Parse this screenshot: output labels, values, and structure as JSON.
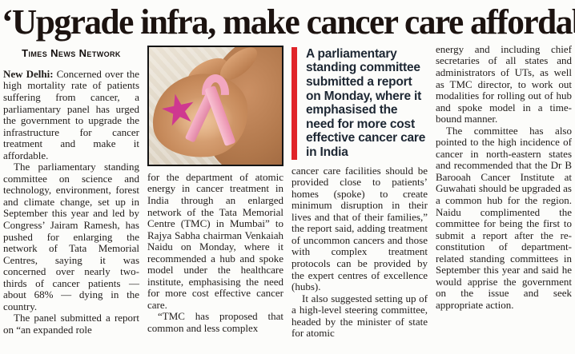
{
  "article": {
    "headline": "‘Upgrade infra, make cancer care affordable’",
    "byline": "Times News Network"
  },
  "colors": {
    "pullquote_bar_red": "#e02429",
    "pullquote_text": "#1d2733",
    "body_text": "#201c1a",
    "ribbon_pink": "#f2a7c0",
    "star_magenta": "#cf3890"
  },
  "photo": {
    "description": "two hands holding a pink awareness ribbon and a magenta star flower"
  },
  "columns": {
    "col1": {
      "p1_lead": "New Delhi:",
      "p1_rest": " Concerned over the high mortality rate of patients suffering from cancer, a parliamentary panel has urged the government to upgrade the infrastructure for cancer treatment and make it affordable.",
      "p2": "The parliamentary standing committee on science and technology, environment, forest and climate change, set up in September this year and led by Congress’ Jairam Ramesh, has pushed for enlarging the network of Tata Memorial Centres, saying it was concerned over nearly two-thirds of cancer patients — about 68% — dying in the country.",
      "p3": "The panel submitted a report on “an expanded role"
    },
    "col2": {
      "p1": "for the department of atomic energy in cancer treatment in India through an enlarged network of the Tata Memorial Centre (TMC) in Mumbai” to Rajya Sabha chairman Venkaiah Naidu on Monday, where it recommended a hub and spoke model under the healthcare institute, emphasising the need for more cost effective cancer care.",
      "p2": "“TMC has proposed that common and less complex"
    },
    "col3": {
      "pullquote": "A parliamentary standing committee submitted a report on Monday, where it emphasised the need for more cost effective cancer care in India",
      "p1": "cancer care facilities should be provided close to patients’ homes (spoke) to create minimum disruption in their lives and that of their families,” the report said, adding treatment of uncommon cancers and those with complex treatment protocols can be provided by the expert centres of excellence (hubs).",
      "p2": "It also suggested setting up of a high-level steering committee, headed by the minister of state for atomic"
    },
    "col4": {
      "p1": "energy and including chief secretaries of all states and administrators of UTs, as well as TMC director, to work out modalities for rolling out of hub and spoke model in a time-bound manner.",
      "p2": "The committee has also pointed to the high incidence of cancer in north-eastern states and recommended that the Dr B Barooah Cancer Institute at Guwahati should be upgraded as a common hub for the region. Naidu complimented the committee for being the first to submit a report after the re-constitution of department-related standing committees in September this year and said he would apprise the government on the issue and seek appropriate action."
    }
  }
}
